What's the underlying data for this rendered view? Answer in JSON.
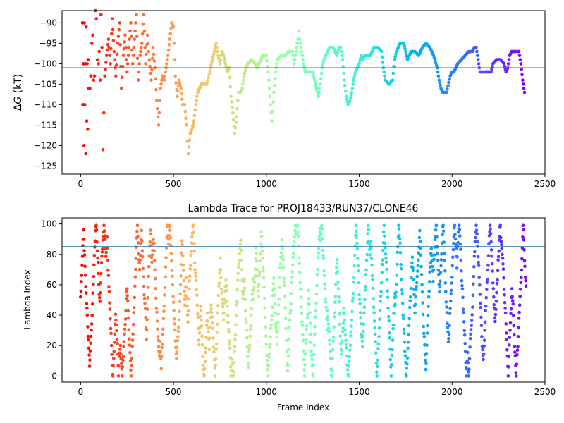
{
  "chart_data": [
    {
      "type": "scatter",
      "title": "",
      "xlabel": "",
      "ylabel": "ΔG (kT)",
      "ylabel_delta": "Δ",
      "ylabel_var": "G",
      "ylabel_unit": " (kT)",
      "xlim": [
        -100,
        2500
      ],
      "ylim": [
        -127,
        -87
      ],
      "xticks": [
        0,
        500,
        1000,
        1500,
        2000,
        2500
      ],
      "yticks": [
        -125,
        -120,
        -115,
        -110,
        -105,
        -100,
        -95,
        -90
      ],
      "hline": -101,
      "hline_color": "#1f77b4",
      "colormap": "rainbow (reversed: red at frame 0, violet at last frame)",
      "n_frames": 2400,
      "series_points": [
        [
          10,
          -90
        ],
        [
          20,
          -90
        ],
        [
          30,
          -91
        ],
        [
          15,
          -100
        ],
        [
          25,
          -100
        ],
        [
          35,
          -100
        ],
        [
          40,
          -99
        ],
        [
          12,
          -110
        ],
        [
          22,
          -110
        ],
        [
          18,
          -120
        ],
        [
          28,
          -122
        ],
        [
          33,
          -114
        ],
        [
          38,
          -116
        ],
        [
          42,
          -106
        ],
        [
          50,
          -106
        ],
        [
          55,
          -103
        ],
        [
          60,
          -95
        ],
        [
          65,
          -93
        ],
        [
          70,
          -104
        ],
        [
          75,
          -103
        ],
        [
          80,
          -87
        ],
        [
          85,
          -89
        ],
        [
          90,
          -99
        ],
        [
          95,
          -100
        ],
        [
          100,
          -97
        ],
        [
          105,
          -104
        ],
        [
          110,
          -88
        ],
        [
          115,
          -96
        ],
        [
          120,
          -121
        ],
        [
          125,
          -112
        ],
        [
          130,
          -103
        ],
        [
          140,
          -98
        ],
        [
          150,
          -94
        ],
        [
          160,
          -100
        ],
        [
          170,
          -89
        ],
        [
          180,
          -97
        ],
        [
          190,
          -103
        ],
        [
          200,
          -95
        ],
        [
          210,
          -90
        ],
        [
          220,
          -106
        ],
        [
          230,
          -98
        ],
        [
          240,
          -93
        ],
        [
          250,
          -102
        ],
        [
          260,
          -96
        ],
        [
          270,
          -90
        ],
        [
          280,
          -100
        ],
        [
          290,
          -94
        ],
        [
          300,
          -88
        ],
        [
          310,
          -104
        ],
        [
          320,
          -98
        ],
        [
          330,
          -95
        ],
        [
          340,
          -88
        ],
        [
          350,
          -100
        ],
        [
          360,
          -93
        ],
        [
          370,
          -99
        ],
        [
          380,
          -104
        ],
        [
          390,
          -96
        ],
        [
          400,
          -101
        ],
        [
          410,
          -109
        ],
        [
          420,
          -115
        ],
        [
          430,
          -106
        ],
        [
          440,
          -103
        ],
        [
          450,
          -104
        ],
        [
          460,
          -101
        ],
        [
          470,
          -98
        ],
        [
          480,
          -94
        ],
        [
          490,
          -90
        ],
        [
          500,
          -91
        ],
        [
          510,
          -103
        ],
        [
          520,
          -108
        ],
        [
          530,
          -104
        ],
        [
          540,
          -106
        ],
        [
          550,
          -110
        ],
        [
          560,
          -110
        ],
        [
          570,
          -115
        ],
        [
          575,
          -119
        ],
        [
          580,
          -122
        ],
        [
          590,
          -117
        ],
        [
          600,
          -116
        ],
        [
          610,
          -114
        ],
        [
          620,
          -110
        ],
        [
          630,
          -107
        ],
        [
          640,
          -106
        ],
        [
          650,
          -105
        ],
        [
          660,
          -105
        ],
        [
          680,
          -105
        ],
        [
          700,
          -101
        ],
        [
          710,
          -99
        ],
        [
          720,
          -97
        ],
        [
          730,
          -95
        ],
        [
          740,
          -98
        ],
        [
          750,
          -100
        ],
        [
          760,
          -97
        ],
        [
          770,
          -98
        ],
        [
          780,
          -100
        ],
        [
          790,
          -102
        ],
        [
          800,
          -101
        ],
        [
          810,
          -108
        ],
        [
          820,
          -112
        ],
        [
          830,
          -117
        ],
        [
          840,
          -113
        ],
        [
          850,
          -107
        ],
        [
          860,
          -107
        ],
        [
          870,
          -106
        ],
        [
          880,
          -103
        ],
        [
          890,
          -101
        ],
        [
          900,
          -100
        ],
        [
          920,
          -99
        ],
        [
          940,
          -100
        ],
        [
          950,
          -101
        ],
        [
          960,
          -100
        ],
        [
          970,
          -99
        ],
        [
          980,
          -98
        ],
        [
          1000,
          -98
        ],
        [
          1010,
          -102
        ],
        [
          1020,
          -108
        ],
        [
          1030,
          -114
        ],
        [
          1040,
          -107
        ],
        [
          1050,
          -102
        ],
        [
          1060,
          -99
        ],
        [
          1080,
          -98
        ],
        [
          1100,
          -98
        ],
        [
          1120,
          -97
        ],
        [
          1140,
          -97
        ],
        [
          1150,
          -100
        ],
        [
          1160,
          -97
        ],
        [
          1170,
          -94
        ],
        [
          1175,
          -92
        ],
        [
          1180,
          -94
        ],
        [
          1190,
          -97
        ],
        [
          1200,
          -100
        ],
        [
          1210,
          -102
        ],
        [
          1230,
          -102
        ],
        [
          1250,
          -102
        ],
        [
          1260,
          -104
        ],
        [
          1270,
          -106
        ],
        [
          1280,
          -108
        ],
        [
          1290,
          -105
        ],
        [
          1300,
          -101
        ],
        [
          1310,
          -99
        ],
        [
          1320,
          -98
        ],
        [
          1330,
          -97
        ],
        [
          1340,
          -96
        ],
        [
          1360,
          -96
        ],
        [
          1370,
          -97
        ],
        [
          1380,
          -98
        ],
        [
          1390,
          -96
        ],
        [
          1400,
          -96
        ],
        [
          1410,
          -99
        ],
        [
          1420,
          -104
        ],
        [
          1430,
          -108
        ],
        [
          1440,
          -110
        ],
        [
          1450,
          -109
        ],
        [
          1460,
          -107
        ],
        [
          1470,
          -104
        ],
        [
          1480,
          -102
        ],
        [
          1490,
          -101
        ],
        [
          1500,
          -100
        ],
        [
          1510,
          -98
        ],
        [
          1520,
          -99
        ],
        [
          1530,
          -98
        ],
        [
          1540,
          -98
        ],
        [
          1560,
          -98
        ],
        [
          1570,
          -97
        ],
        [
          1580,
          -96
        ],
        [
          1600,
          -96
        ],
        [
          1620,
          -97
        ],
        [
          1630,
          -101
        ],
        [
          1640,
          -104
        ],
        [
          1660,
          -105
        ],
        [
          1680,
          -104
        ],
        [
          1690,
          -99
        ],
        [
          1700,
          -97
        ],
        [
          1710,
          -96
        ],
        [
          1720,
          -95
        ],
        [
          1740,
          -95
        ],
        [
          1750,
          -97
        ],
        [
          1760,
          -99
        ],
        [
          1770,
          -98
        ],
        [
          1780,
          -97
        ],
        [
          1800,
          -97
        ],
        [
          1820,
          -98
        ],
        [
          1840,
          -96
        ],
        [
          1860,
          -95
        ],
        [
          1880,
          -96
        ],
        [
          1900,
          -98
        ],
        [
          1920,
          -101
        ],
        [
          1930,
          -104
        ],
        [
          1940,
          -106
        ],
        [
          1950,
          -107
        ],
        [
          1970,
          -107
        ],
        [
          1990,
          -103
        ],
        [
          2000,
          -102
        ],
        [
          2010,
          -102
        ],
        [
          2020,
          -101
        ],
        [
          2030,
          -100
        ],
        [
          2050,
          -99
        ],
        [
          2070,
          -98
        ],
        [
          2090,
          -97
        ],
        [
          2110,
          -97
        ],
        [
          2120,
          -96
        ],
        [
          2130,
          -96
        ],
        [
          2140,
          -99
        ],
        [
          2150,
          -102
        ],
        [
          2170,
          -102
        ],
        [
          2190,
          -102
        ],
        [
          2210,
          -102
        ],
        [
          2220,
          -100
        ],
        [
          2240,
          -99
        ],
        [
          2260,
          -99
        ],
        [
          2280,
          -100
        ],
        [
          2290,
          -102
        ],
        [
          2300,
          -101
        ],
        [
          2310,
          -98
        ],
        [
          2320,
          -97
        ],
        [
          2340,
          -97
        ],
        [
          2360,
          -97
        ],
        [
          2370,
          -100
        ],
        [
          2380,
          -104
        ],
        [
          2390,
          -107
        ]
      ]
    },
    {
      "type": "scatter",
      "title": "Lambda Trace for PROJ18433/RUN37/CLONE46",
      "xlabel": "Frame Index",
      "ylabel": "Lambda Index",
      "xlim": [
        -100,
        2500
      ],
      "ylim": [
        -4,
        104
      ],
      "xticks": [
        0,
        500,
        1000,
        1500,
        2000,
        2500
      ],
      "yticks": [
        0,
        20,
        40,
        60,
        80,
        100
      ],
      "hline": 85,
      "hline_color": "#1f77b4",
      "colormap": "rainbow (reversed: red at frame 0, violet at last frame)",
      "n_frames": 2400,
      "y_range": [
        0,
        99
      ]
    }
  ]
}
